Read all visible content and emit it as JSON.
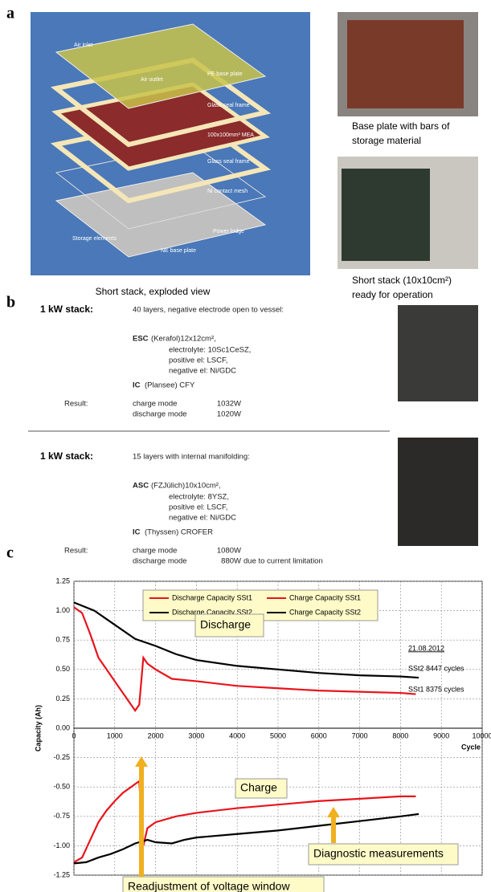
{
  "panels": {
    "a": {
      "label": "a",
      "diagram_labels": [
        "Air inlet",
        "Air outlet",
        "PE base plate",
        "Glass seal frame",
        "100x100mm² MEA",
        "Glass seal frame",
        "Ni contact mesh",
        "Power lodge",
        "Storage elements",
        "NE base plate"
      ],
      "caption": "Short stack, exploded view",
      "photo_captions": [
        "Base plate with bars of",
        "storage material",
        "Short stack (10x10cm²)",
        "ready for operation"
      ]
    },
    "b": {
      "label": "b",
      "stacks": [
        {
          "heading": "1 kW stack:",
          "description": "40 layers, negative electrode open to vessel:",
          "cell_type": "ESC",
          "cell_text": "(Kerafol)12x12cm²,",
          "materials": [
            "electrolyte: 10Sc1CeSZ,",
            "positive el: LSCF,",
            "negative el: Ni/GDC"
          ],
          "ic": "IC",
          "ic_text": "(Plansee) CFY",
          "result_label": "Result:",
          "results": [
            [
              "charge mode",
              "1032W"
            ],
            [
              "discharge mode",
              "1020W"
            ]
          ],
          "note": null
        },
        {
          "heading": "1 kW stack:",
          "description": "15 layers with internal manifolding:",
          "cell_type": "ASC",
          "cell_text": "(FZJülich)10x10cm²,",
          "materials": [
            "electrolyte: 8YSZ,",
            "positive el: LSCF,",
            "negative el: Ni/GDC"
          ],
          "ic": "IC",
          "ic_text": "(Thyssen)  CROFER",
          "result_label": "Result:",
          "results": [
            [
              "charge mode",
              "1080W"
            ],
            [
              "discharge mode",
              "880W"
            ]
          ],
          "note": "due to current limitation"
        }
      ]
    },
    "c": {
      "label": "c"
    }
  },
  "chart_data": {
    "type": "line",
    "x_label": "Cycle",
    "y_label": "Capacity (Ah)",
    "xlim": [
      0,
      10000
    ],
    "xticks": [
      0,
      1000,
      2000,
      3000,
      4000,
      5000,
      6000,
      7000,
      8000,
      9000,
      10000
    ],
    "ylim": [
      -1.25,
      1.25
    ],
    "yticks": [
      1.25,
      {
        "value": 1,
        "label": "1.00"
      },
      0.75,
      {
        "value": 0.5,
        "label": "0.50"
      },
      0.25,
      {
        "value": 0,
        "label": "0.00"
      },
      -0.25,
      {
        "value": -0.5,
        "label": "-0.50"
      },
      -0.75,
      {
        "value": -1,
        "label": "-1.00"
      },
      -1.25
    ],
    "grid": true,
    "series": [
      {
        "name": "Discharge Capacity SSt1",
        "color": "#e8141c",
        "x": [
          0,
          200,
          400,
          600,
          800,
          1000,
          1200,
          1400,
          1500,
          1600,
          1700,
          1800,
          2000,
          2400,
          3000,
          4000,
          5000,
          6000,
          7000,
          8000,
          8375
        ],
        "values": [
          1.03,
          0.98,
          0.8,
          0.6,
          0.5,
          0.4,
          0.3,
          0.2,
          0.15,
          0.2,
          0.6,
          0.55,
          0.5,
          0.42,
          0.4,
          0.36,
          0.34,
          0.32,
          0.31,
          0.3,
          0.29
        ]
      },
      {
        "name": "Charge Capacity SSt1",
        "color": "#e8141c",
        "x": [
          0,
          200,
          400,
          600,
          800,
          1000,
          1200,
          1400,
          1600,
          1700,
          1800,
          2000,
          2500,
          3000,
          4000,
          5000,
          6000,
          7000,
          8000,
          8375
        ],
        "values": [
          -1.14,
          -1.1,
          -0.95,
          -0.8,
          -0.7,
          -0.62,
          -0.55,
          -0.5,
          -0.45,
          -1.0,
          -0.85,
          -0.8,
          -0.75,
          -0.72,
          -0.68,
          -0.65,
          -0.62,
          -0.6,
          -0.58,
          -0.58
        ]
      },
      {
        "name": "Discharge Capacity SSt2",
        "color": "#000000",
        "x": [
          0,
          500,
          1000,
          1500,
          2000,
          2500,
          3000,
          4000,
          5000,
          6000,
          7000,
          8000,
          8447
        ],
        "values": [
          1.07,
          1.0,
          0.88,
          0.76,
          0.7,
          0.63,
          0.58,
          0.53,
          0.5,
          0.47,
          0.45,
          0.44,
          0.43
        ]
      },
      {
        "name": "Charge Capacity SSt2",
        "color": "#000000",
        "x": [
          0,
          300,
          600,
          900,
          1200,
          1500,
          1800,
          2000,
          2400,
          2700,
          3000,
          4000,
          5000,
          6000,
          7000,
          8000,
          8447
        ],
        "values": [
          -1.15,
          -1.14,
          -1.1,
          -1.07,
          -1.03,
          -0.98,
          -0.95,
          -0.97,
          -0.98,
          -0.95,
          -0.93,
          -0.9,
          -0.87,
          -0.83,
          -0.79,
          -0.75,
          -0.73
        ]
      }
    ],
    "annotations": [
      "Discharge",
      "Charge",
      "21.08.2012",
      "SSt2 8447 cycles",
      "SSt1 8375 cycles",
      "Diagnostic measurements",
      "Readjustment of voltage window"
    ]
  }
}
